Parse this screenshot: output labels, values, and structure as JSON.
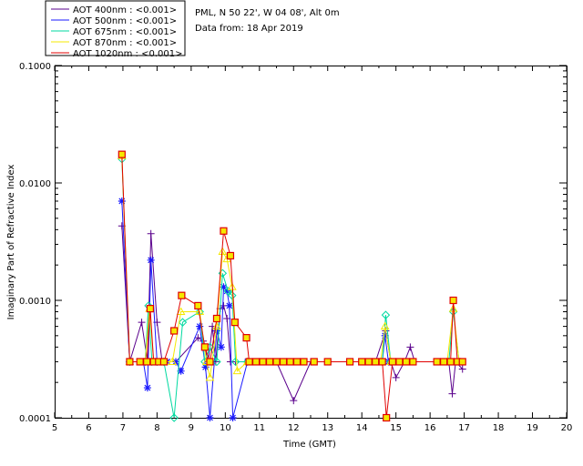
{
  "chart_data": {
    "type": "line",
    "title": "",
    "xlabel": "Time (GMT)",
    "ylabel": "Imaginary Part of Refractive Index",
    "yscale": "log",
    "xlim": [
      5,
      20
    ],
    "ylim": [
      0.0001,
      0.1
    ],
    "x_ticks": [
      5,
      6,
      7,
      8,
      9,
      10,
      11,
      12,
      13,
      14,
      15,
      16,
      17,
      18,
      19,
      20
    ],
    "y_ticks": [
      {
        "value": 0.0001,
        "label": "0.0001"
      },
      {
        "value": 0.001,
        "label": "0.0010"
      },
      {
        "value": 0.01,
        "label": "0.0100"
      },
      {
        "value": 0.1,
        "label": "0.1000"
      }
    ],
    "info_lines": [
      "PML, N 50 22', W 04 08', Alt 0m",
      "Data from: 18 Apr 2019"
    ],
    "series": [
      {
        "name": "AOT  400nm : <0.001>",
        "color": "#5a008c",
        "marker": "plus",
        "points": [
          [
            6.97,
            0.0043
          ],
          [
            7.2,
            0.0003
          ],
          [
            7.55,
            0.00065
          ],
          [
            7.72,
            0.0003
          ],
          [
            7.82,
            0.0037
          ],
          [
            8.0,
            0.00065
          ],
          [
            8.15,
            0.0003
          ],
          [
            8.3,
            0.0003
          ],
          [
            8.55,
            0.0003
          ],
          [
            9.2,
            0.00048
          ],
          [
            9.35,
            0.00045
          ],
          [
            9.5,
            0.0003
          ],
          [
            9.62,
            0.0006
          ],
          [
            9.72,
            0.0003
          ],
          [
            9.85,
            0.00085
          ],
          [
            9.95,
            0.0009
          ],
          [
            10.05,
            0.0007
          ],
          [
            10.15,
            0.0003
          ],
          [
            10.3,
            0.0003
          ],
          [
            10.65,
            0.0003
          ],
          [
            11.0,
            0.0003
          ],
          [
            11.5,
            0.0003
          ],
          [
            12.0,
            0.00014
          ],
          [
            12.5,
            0.0003
          ],
          [
            14.1,
            0.0003
          ],
          [
            14.4,
            0.0003
          ],
          [
            14.7,
            0.00055
          ],
          [
            14.85,
            0.0003
          ],
          [
            15.0,
            0.00022
          ],
          [
            15.25,
            0.0003
          ],
          [
            15.42,
            0.0004
          ],
          [
            15.55,
            0.0003
          ],
          [
            16.3,
            0.0003
          ],
          [
            16.55,
            0.0003
          ],
          [
            16.65,
            0.00016
          ],
          [
            16.75,
            0.0003
          ],
          [
            16.95,
            0.00026
          ]
        ]
      },
      {
        "name": "AOT  500nm : <0.001>",
        "color": "#1a1aff",
        "marker": "asterisk",
        "points": [
          [
            6.97,
            0.007
          ],
          [
            7.2,
            0.0003
          ],
          [
            7.6,
            0.0003
          ],
          [
            7.72,
            0.00018
          ],
          [
            7.82,
            0.0022
          ],
          [
            8.0,
            0.0003
          ],
          [
            8.3,
            0.0003
          ],
          [
            8.55,
            0.0003
          ],
          [
            8.7,
            0.00025
          ],
          [
            9.25,
            0.0006
          ],
          [
            9.42,
            0.00027
          ],
          [
            9.55,
            0.0001
          ],
          [
            9.75,
            0.00055
          ],
          [
            9.88,
            0.0004
          ],
          [
            9.95,
            0.0013
          ],
          [
            10.05,
            0.0012
          ],
          [
            10.12,
            0.0009
          ],
          [
            10.22,
            0.0001
          ],
          [
            10.65,
            0.0003
          ],
          [
            14.6,
            0.0003
          ],
          [
            14.68,
            0.0005
          ],
          [
            14.78,
            0.0003
          ],
          [
            16.55,
            0.0003
          ],
          [
            16.7,
            0.0003
          ],
          [
            16.9,
            0.0003
          ]
        ]
      },
      {
        "name": "AOT  675nm : <0.001>",
        "color": "#00d9a0",
        "marker": "diamond",
        "points": [
          [
            6.97,
            0.016
          ],
          [
            7.2,
            0.0003
          ],
          [
            7.65,
            0.0003
          ],
          [
            7.75,
            0.0009
          ],
          [
            7.85,
            0.0003
          ],
          [
            8.0,
            0.0003
          ],
          [
            8.2,
            0.0003
          ],
          [
            8.5,
            0.0001
          ],
          [
            8.75,
            0.00065
          ],
          [
            9.25,
            0.0008
          ],
          [
            9.4,
            0.0003
          ],
          [
            9.55,
            0.0004
          ],
          [
            9.75,
            0.0003
          ],
          [
            9.92,
            0.0017
          ],
          [
            10.08,
            0.0012
          ],
          [
            10.2,
            0.0011
          ],
          [
            10.3,
            0.0003
          ],
          [
            10.65,
            0.0003
          ],
          [
            14.6,
            0.0003
          ],
          [
            14.7,
            0.00075
          ],
          [
            14.85,
            0.0003
          ],
          [
            16.55,
            0.0003
          ],
          [
            16.68,
            0.0008
          ],
          [
            16.85,
            0.0003
          ]
        ]
      },
      {
        "name": "AOT  870nm : <0.001>",
        "color": "#f5e800",
        "marker": "triangle",
        "points": [
          [
            6.97,
            0.017
          ],
          [
            7.2,
            0.0003
          ],
          [
            7.65,
            0.0003
          ],
          [
            7.78,
            0.00085
          ],
          [
            7.9,
            0.0003
          ],
          [
            8.2,
            0.0003
          ],
          [
            8.45,
            0.0003
          ],
          [
            8.7,
            0.0008
          ],
          [
            9.25,
            0.0008
          ],
          [
            9.45,
            0.0003
          ],
          [
            9.55,
            0.00022
          ],
          [
            9.75,
            0.0006
          ],
          [
            9.92,
            0.0026
          ],
          [
            10.05,
            0.00225
          ],
          [
            10.2,
            0.0013
          ],
          [
            10.35,
            0.00025
          ],
          [
            10.65,
            0.0003
          ],
          [
            14.55,
            0.0003
          ],
          [
            14.68,
            0.0006
          ],
          [
            14.85,
            0.0003
          ],
          [
            16.5,
            0.0003
          ],
          [
            16.68,
            0.00085
          ],
          [
            16.85,
            0.0003
          ]
        ]
      },
      {
        "name": "AOT 1020nm : <0.001>",
        "color": "#e00000",
        "marker": "square",
        "points": [
          [
            6.97,
            0.0175
          ],
          [
            7.2,
            0.0003
          ],
          [
            7.5,
            0.0003
          ],
          [
            7.7,
            0.0003
          ],
          [
            7.8,
            0.00085
          ],
          [
            7.9,
            0.0003
          ],
          [
            8.05,
            0.0003
          ],
          [
            8.2,
            0.0003
          ],
          [
            8.5,
            0.00055
          ],
          [
            8.72,
            0.0011
          ],
          [
            9.2,
            0.0009
          ],
          [
            9.4,
            0.0004
          ],
          [
            9.55,
            0.0003
          ],
          [
            9.75,
            0.0007
          ],
          [
            9.95,
            0.0039
          ],
          [
            10.15,
            0.0024
          ],
          [
            10.28,
            0.00065
          ],
          [
            10.62,
            0.00048
          ],
          [
            10.7,
            0.0003
          ],
          [
            10.9,
            0.0003
          ],
          [
            11.1,
            0.0003
          ],
          [
            11.3,
            0.0003
          ],
          [
            11.5,
            0.0003
          ],
          [
            11.7,
            0.0003
          ],
          [
            11.9,
            0.0003
          ],
          [
            12.1,
            0.0003
          ],
          [
            12.3,
            0.0003
          ],
          [
            12.6,
            0.0003
          ],
          [
            13.0,
            0.0003
          ],
          [
            13.65,
            0.0003
          ],
          [
            14.0,
            0.0003
          ],
          [
            14.2,
            0.0003
          ],
          [
            14.4,
            0.0003
          ],
          [
            14.6,
            0.0003
          ],
          [
            14.72,
            0.0001
          ],
          [
            14.9,
            0.0003
          ],
          [
            15.1,
            0.0003
          ],
          [
            15.3,
            0.0003
          ],
          [
            15.5,
            0.0003
          ],
          [
            16.2,
            0.0003
          ],
          [
            16.4,
            0.0003
          ],
          [
            16.6,
            0.0003
          ],
          [
            16.68,
            0.001
          ],
          [
            16.8,
            0.0003
          ],
          [
            16.95,
            0.0003
          ]
        ]
      }
    ]
  }
}
